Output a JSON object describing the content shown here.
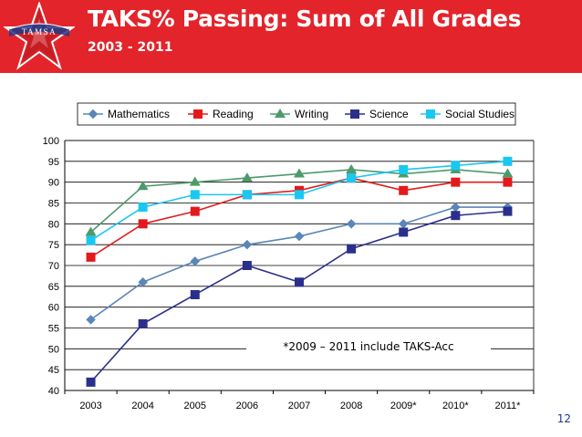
{
  "header": {
    "title": "TAKS% Passing: Sum of All Grades",
    "subtitle": "2003 - 2011",
    "logo_text": "TAMSA"
  },
  "page_number": "12",
  "colors": {
    "header_bg": "#e3242b",
    "Mathematics": "#5b86b8",
    "Reading": "#e31a1c",
    "Writing": "#4d9a6a",
    "Science": "#2b2f8c",
    "Social Studies": "#19c8f0"
  },
  "chart_data": {
    "type": "line",
    "title": "",
    "xlabel": "",
    "ylabel": "",
    "categories": [
      "2003",
      "2004",
      "2005",
      "2006",
      "2007",
      "2008",
      "2009*",
      "2010*",
      "2011*"
    ],
    "ylim": [
      40,
      100
    ],
    "yticks": [
      40,
      45,
      50,
      55,
      60,
      65,
      70,
      75,
      80,
      85,
      90,
      95,
      100
    ],
    "grid": true,
    "legend_position": "top",
    "series": [
      {
        "name": "Mathematics",
        "marker": "diamond",
        "values": [
          57,
          66,
          71,
          75,
          77,
          80,
          80,
          84,
          84
        ]
      },
      {
        "name": "Reading",
        "marker": "square",
        "values": [
          72,
          80,
          83,
          87,
          88,
          91,
          88,
          90,
          90
        ]
      },
      {
        "name": "Writing",
        "marker": "triangle",
        "values": [
          78,
          89,
          90,
          91,
          92,
          93,
          92,
          93,
          92
        ]
      },
      {
        "name": "Science",
        "marker": "square",
        "values": [
          42,
          56,
          63,
          70,
          66,
          74,
          78,
          82,
          83
        ]
      },
      {
        "name": "Social Studies",
        "marker": "square",
        "values": [
          76,
          84,
          87,
          87,
          87,
          91,
          93,
          94,
          95
        ]
      }
    ],
    "annotation": "*2009 – 2011 include TAKS-Acc"
  }
}
